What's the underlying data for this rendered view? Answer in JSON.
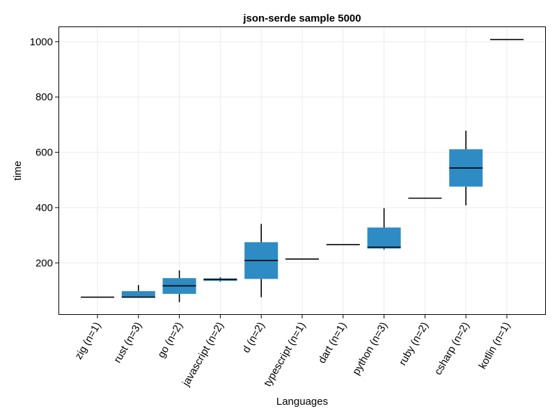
{
  "chart_data": {
    "type": "box",
    "title": "json-serde sample 5000",
    "xlabel": "Languages",
    "ylabel": "time",
    "ylim": [
      12,
      1055
    ],
    "yticks": [
      200,
      400,
      600,
      800,
      1000
    ],
    "grid": true,
    "box_color": "#2e8bc4",
    "categories": [
      "zig (n=1)",
      "rust (n=3)",
      "go (n=2)",
      "javascript (n=2)",
      "d (n=2)",
      "typescript (n=1)",
      "dart (n=1)",
      "python (n=3)",
      "ruby (n=2)",
      "csharp (n=2)",
      "kotlin (n=1)"
    ],
    "boxes": [
      {
        "min": 76,
        "q1": 76,
        "median": 76,
        "q3": 76,
        "max": 76
      },
      {
        "min": 75,
        "q1": 75,
        "median": 76,
        "q3": 98,
        "max": 120
      },
      {
        "min": 58,
        "q1": 88,
        "median": 117,
        "q3": 145,
        "max": 173
      },
      {
        "min": 132,
        "q1": 135,
        "median": 140,
        "q3": 144,
        "max": 148
      },
      {
        "min": 76,
        "q1": 142,
        "median": 209,
        "q3": 275,
        "max": 341
      },
      {
        "min": 214,
        "q1": 214,
        "median": 214,
        "q3": 214,
        "max": 214
      },
      {
        "min": 266,
        "q1": 266,
        "median": 266,
        "q3": 266,
        "max": 266
      },
      {
        "min": 248,
        "q1": 252,
        "median": 257,
        "q3": 328,
        "max": 398
      },
      {
        "min": 434,
        "q1": 434,
        "median": 434,
        "q3": 434,
        "max": 434
      },
      {
        "min": 408,
        "q1": 476,
        "median": 543,
        "q3": 611,
        "max": 678
      },
      {
        "min": 1008,
        "q1": 1008,
        "median": 1008,
        "q3": 1008,
        "max": 1008
      }
    ]
  }
}
